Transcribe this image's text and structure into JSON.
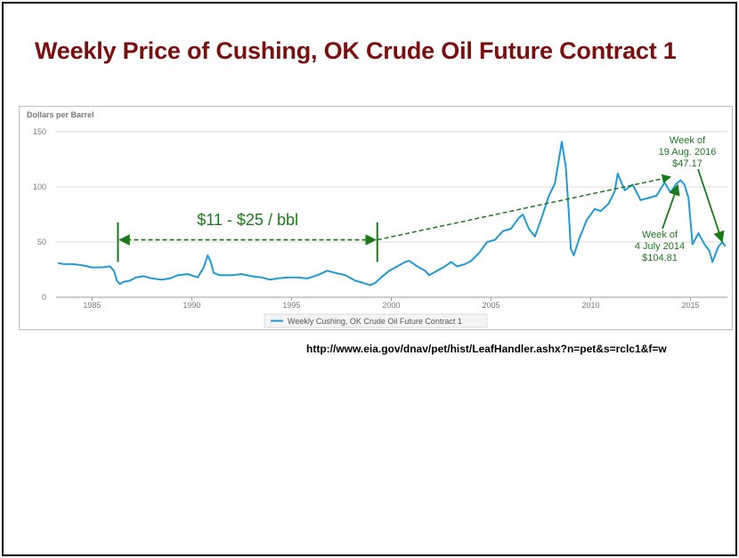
{
  "slide": {
    "title": "Weekly Price of Cushing, OK Crude Oil Future Contract 1",
    "source_url": "http://www.eia.gov/dnav/pet/hist/LeafHandler.ashx?n=pet&s=rclc1&f=w"
  },
  "colors": {
    "title": "#7a0f0f",
    "series": "#1f9ad6",
    "annotation": "#1a7a1a",
    "grid": "#dddddd",
    "axis_text": "#777777"
  },
  "chart_data": {
    "type": "line",
    "title": "",
    "xlabel": "",
    "ylabel": "Dollars per Barrel",
    "xlim": [
      1983.2,
      2016.85
    ],
    "ylim": [
      0,
      150
    ],
    "x_ticks": [
      "1985",
      "1990",
      "1995",
      "2000",
      "2005",
      "2010",
      "2015"
    ],
    "y_ticks": [
      "0",
      "50",
      "100",
      "150"
    ],
    "grid": "horizontal",
    "legend_position": "bottom",
    "series": [
      {
        "name": "Weekly Cushing, OK Crude Oil Future Contract 1",
        "x": [
          1983.3,
          1983.6,
          1984.0,
          1984.5,
          1985.0,
          1985.5,
          1985.9,
          1986.1,
          1986.25,
          1986.4,
          1986.6,
          1986.9,
          1987.2,
          1987.6,
          1988.0,
          1988.5,
          1988.9,
          1989.3,
          1989.8,
          1990.3,
          1990.6,
          1990.8,
          1990.95,
          1991.1,
          1991.4,
          1992.0,
          1992.5,
          1993.0,
          1993.5,
          1993.9,
          1994.3,
          1994.8,
          1995.3,
          1995.8,
          1996.3,
          1996.8,
          1997.2,
          1997.7,
          1998.2,
          1998.6,
          1998.95,
          1999.2,
          1999.5,
          1999.9,
          2000.3,
          2000.7,
          2000.9,
          2001.3,
          2001.7,
          2001.9,
          2002.3,
          2002.7,
          2003.0,
          2003.3,
          2003.7,
          2004.0,
          2004.4,
          2004.8,
          2005.2,
          2005.6,
          2006.0,
          2006.4,
          2006.6,
          2006.9,
          2007.2,
          2007.5,
          2007.9,
          2008.2,
          2008.45,
          2008.55,
          2008.75,
          2008.9,
          2009.0,
          2009.15,
          2009.4,
          2009.8,
          2010.2,
          2010.5,
          2010.9,
          2011.2,
          2011.35,
          2011.7,
          2012.1,
          2012.5,
          2012.9,
          2013.3,
          2013.7,
          2014.0,
          2014.3,
          2014.5,
          2014.7,
          2014.9,
          2015.1,
          2015.4,
          2015.7,
          2015.95,
          2016.1,
          2016.4,
          2016.6,
          2016.75
        ],
        "y": [
          31,
          30,
          30,
          29,
          27,
          27,
          28,
          24,
          15,
          12,
          14,
          15,
          18,
          19,
          17,
          16,
          17,
          20,
          21,
          18,
          27,
          38,
          32,
          22,
          20,
          20,
          21,
          19,
          18,
          16,
          17,
          18,
          18,
          17,
          20,
          24,
          22,
          20,
          15,
          13,
          11,
          13,
          18,
          24,
          28,
          32,
          33,
          28,
          24,
          20,
          24,
          28,
          32,
          28,
          30,
          33,
          40,
          50,
          52,
          60,
          62,
          72,
          75,
          62,
          55,
          70,
          92,
          103,
          130,
          141,
          118,
          76,
          44,
          38,
          52,
          70,
          80,
          78,
          85,
          96,
          112,
          97,
          102,
          88,
          90,
          92,
          104,
          95,
          103,
          106,
          102,
          90,
          48,
          58,
          48,
          42,
          32,
          46,
          50,
          46
        ]
      }
    ],
    "annotations": {
      "range_label": "$11 - $25 / bbl",
      "peak_2014": [
        "Week of",
        "4 July 2014",
        "$104.81"
      ],
      "point_2016": [
        "Week of",
        "19 Aug. 2016",
        "$47.17"
      ],
      "range_start_year": 1986.3,
      "range_end_year": 1999.3,
      "range_level": 52,
      "trend_to": [
        2014.0,
        109
      ],
      "peak_2014_point": [
        2014.5,
        104.81
      ],
      "point_2016_point": [
        2016.63,
        47.17
      ]
    }
  }
}
